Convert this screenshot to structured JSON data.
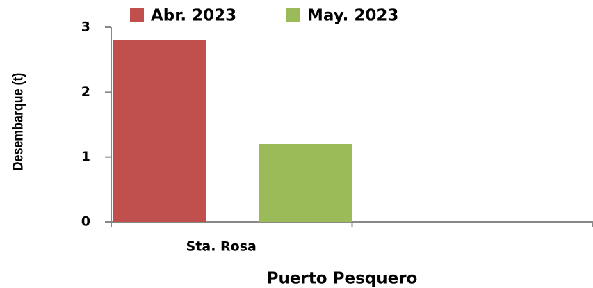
{
  "chart_data": {
    "type": "bar",
    "y_label": "Desembarque (t)",
    "x_label": "Puerto Pesquero",
    "categories": [
      "Sta. Rosa",
      null
    ],
    "series": [
      {
        "name": "Abr. 2023",
        "color": "#c0504d",
        "values": [
          2.8,
          null
        ]
      },
      {
        "name": "May. 2023",
        "color": "#9bbb59",
        "values": [
          1.2,
          null
        ]
      }
    ],
    "ylim": [
      0,
      3
    ],
    "yticks": [
      0,
      1,
      2,
      3
    ],
    "grid": false,
    "legend": "top"
  }
}
